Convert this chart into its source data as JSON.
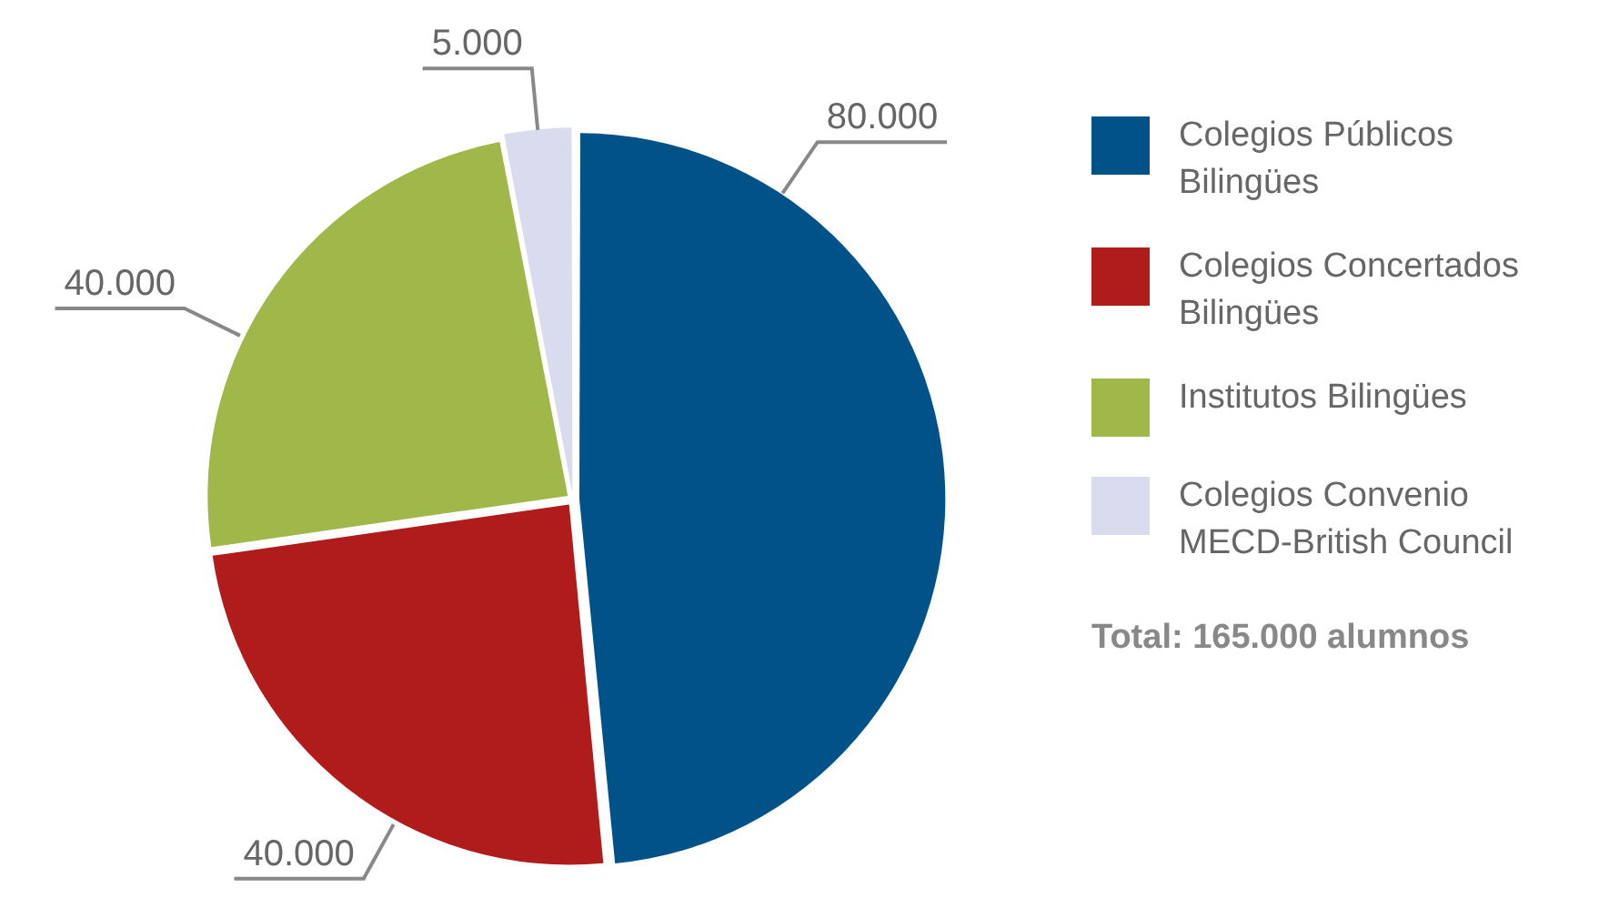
{
  "chart_data": {
    "type": "pie",
    "categories": [
      "Colegios Públicos Bilingües",
      "Colegios Concertados Bilingües",
      "Institutos Bilingües",
      "Colegios Convenio MECD-British Council"
    ],
    "values": [
      80000,
      40000,
      40000,
      5000
    ],
    "value_labels": [
      "80.000",
      "40.000",
      "40.000",
      "5.000"
    ],
    "colors": [
      "#005288",
      "#b01c1c",
      "#a0b84a",
      "#d8dcee"
    ],
    "legend": "right",
    "annotations": [
      "Total: 165.000 alumnos"
    ]
  }
}
